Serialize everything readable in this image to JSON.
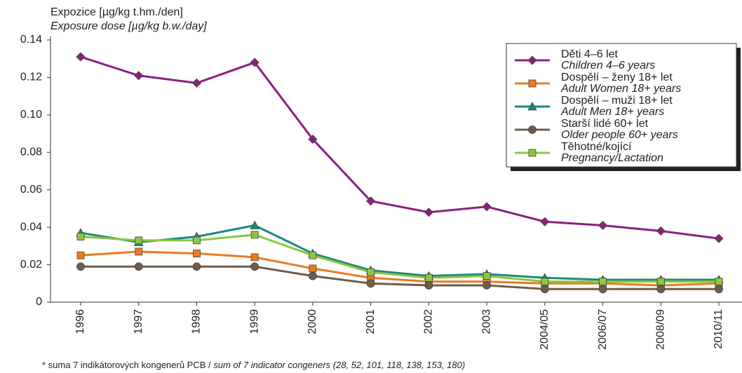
{
  "chart_data": {
    "type": "line",
    "ylabel": "Expozice [µg/kg t.hm./den]",
    "ylabel_en": "Exposure dose [µg/kg b.w./day]",
    "footnote": "* suma 7 indikátorových kongenerů PCB / ",
    "footnote_en": "sum of 7 indicator congeners (28, 52, 101, 118, 138, 153, 180)",
    "categories": [
      "1996",
      "1997",
      "1998",
      "1999",
      "2000",
      "2001",
      "2002",
      "2003",
      "2004/05",
      "2006/07",
      "2008/09",
      "2010/11"
    ],
    "ylim": [
      0,
      0.14
    ],
    "yticks": [
      0,
      0.02,
      0.04,
      0.06,
      0.08,
      {
        "value": 0.1,
        "label": "0.10"
      },
      0.12,
      0.14
    ],
    "legend": "upper right",
    "series": [
      {
        "name": "Děti 4–6 let",
        "name_en": "Children 4–6 years",
        "color": "#8b1f7e",
        "marker": "diamond",
        "values": [
          0.131,
          0.121,
          0.117,
          0.128,
          0.087,
          0.054,
          0.048,
          0.051,
          0.043,
          0.041,
          0.038,
          0.034
        ]
      },
      {
        "name": "Dospělí – ženy 18+ let",
        "name_en": "Adult Women 18+ years",
        "color": "#ea7b22",
        "marker": "square",
        "values": [
          0.025,
          0.027,
          0.026,
          0.024,
          0.018,
          0.013,
          0.011,
          0.011,
          0.01,
          0.01,
          0.009,
          0.01
        ]
      },
      {
        "name": "Dospělí – muži 18+ let",
        "name_en": "Adult Men 18+ years",
        "color": "#1b8a7c",
        "marker": "triangle",
        "values": [
          0.037,
          0.032,
          0.035,
          0.041,
          0.026,
          0.017,
          0.014,
          0.015,
          0.013,
          0.012,
          0.012,
          0.012
        ]
      },
      {
        "name": "Starší lidé 60+ let",
        "name_en": "Older people 60+ years",
        "color": "#6e5d4c",
        "marker": "circle",
        "values": [
          0.019,
          0.019,
          0.019,
          0.019,
          0.014,
          0.01,
          0.009,
          0.009,
          0.007,
          0.007,
          0.007,
          0.007
        ]
      },
      {
        "name": "Těhotné/kojící",
        "name_en": "Pregnancy/Lactation",
        "color": "#8dc63f",
        "marker": "square",
        "values": [
          0.035,
          0.033,
          0.033,
          0.036,
          0.025,
          0.016,
          0.013,
          0.014,
          0.011,
          0.011,
          0.011,
          0.011
        ]
      }
    ]
  }
}
